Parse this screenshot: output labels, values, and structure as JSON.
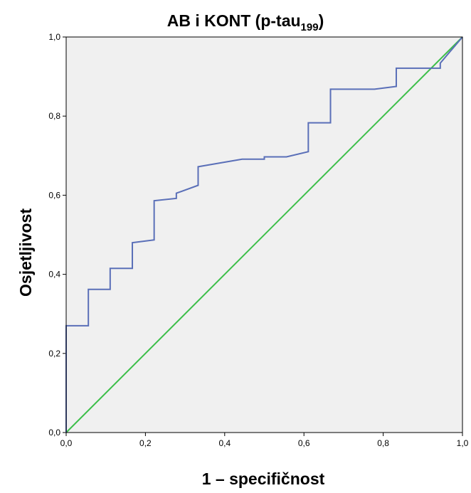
{
  "chart_data": {
    "type": "line",
    "title": "AB i KONT (p-tau",
    "title_subscript": "199",
    "title_suffix": ")",
    "xlabel": "1 – specifičnost",
    "ylabel": "Osjetljivost",
    "xlim": [
      0,
      1
    ],
    "ylim": [
      0,
      1
    ],
    "x_ticks": [
      "0,0",
      "0,2",
      "0,4",
      "0,6",
      "0,8",
      "1,0"
    ],
    "y_ticks": [
      "0,0",
      "0,2",
      "0,4",
      "0,6",
      "0,8",
      "1,0"
    ],
    "grid": false,
    "plot_background": "#f0f0f0",
    "series": [
      {
        "color": "#5a6fb8",
        "points": [
          [
            0.0,
            0.0
          ],
          [
            0.0,
            0.27
          ],
          [
            0.056,
            0.27
          ],
          [
            0.056,
            0.362
          ],
          [
            0.111,
            0.362
          ],
          [
            0.111,
            0.415
          ],
          [
            0.167,
            0.415
          ],
          [
            0.167,
            0.48
          ],
          [
            0.222,
            0.487
          ],
          [
            0.222,
            0.586
          ],
          [
            0.278,
            0.592
          ],
          [
            0.278,
            0.605
          ],
          [
            0.333,
            0.625
          ],
          [
            0.333,
            0.672
          ],
          [
            0.444,
            0.691
          ],
          [
            0.5,
            0.691
          ],
          [
            0.5,
            0.697
          ],
          [
            0.556,
            0.697
          ],
          [
            0.611,
            0.71
          ],
          [
            0.611,
            0.783
          ],
          [
            0.667,
            0.783
          ],
          [
            0.667,
            0.868
          ],
          [
            0.778,
            0.868
          ],
          [
            0.833,
            0.875
          ],
          [
            0.833,
            0.921
          ],
          [
            0.944,
            0.921
          ],
          [
            0.944,
            0.934
          ],
          [
            1.0,
            1.0
          ]
        ]
      },
      {
        "color": "#3dbf4a",
        "points": [
          [
            0.0,
            0.0
          ],
          [
            1.0,
            1.0
          ]
        ]
      }
    ]
  }
}
